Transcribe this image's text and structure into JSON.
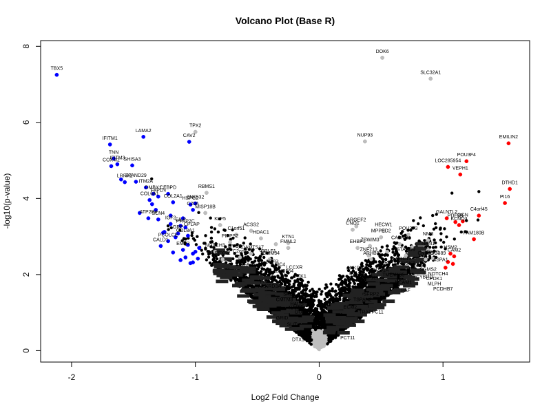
{
  "chart_data": {
    "type": "scatter",
    "title": "Volcano Plot (Base R)",
    "xlabel": "Log2 Fold Change",
    "ylabel": "-log10(p-value)",
    "xlim": [
      -2.25,
      1.7
    ],
    "ylim": [
      -0.3,
      8.15
    ],
    "xticks": [
      -2,
      -1,
      0,
      1
    ],
    "yticks": [
      0,
      2,
      4,
      6,
      8
    ],
    "grid": false,
    "legend": "none",
    "colors": {
      "ns": "#000000",
      "fc_only": "#bebebe",
      "down": "#0000ff",
      "up": "#ff0000"
    },
    "series": [
      {
        "group": "down",
        "points": [
          {
            "x": -2.12,
            "y": 7.25,
            "label": "TBX5"
          },
          {
            "x": -1.69,
            "y": 5.42,
            "label": "IFITM1"
          },
          {
            "x": -1.42,
            "y": 5.62,
            "label": "LAMA2"
          },
          {
            "x": -1.05,
            "y": 5.49,
            "label": "CAV2"
          },
          {
            "x": -1.66,
            "y": 5.05,
            "label": "TNN"
          },
          {
            "x": -1.63,
            "y": 4.9,
            "label": "IFITM3"
          },
          {
            "x": -1.68,
            "y": 4.85,
            "label": "COX4I2"
          },
          {
            "x": -1.51,
            "y": 4.87,
            "label": "SHISA3"
          },
          {
            "x": -1.57,
            "y": 4.43,
            "label": "LRRK2"
          },
          {
            "x": -1.48,
            "y": 4.44,
            "label": "ZFAND29"
          },
          {
            "x": -1.4,
            "y": 4.29,
            "label": "ITM2A"
          },
          {
            "x": -1.34,
            "y": 4.12,
            "label": "DMBX1"
          },
          {
            "x": -1.3,
            "y": 4.05,
            "label": "FAPLN"
          },
          {
            "x": -1.22,
            "y": 4.12,
            "label": "CEBPD"
          },
          {
            "x": -1.37,
            "y": 3.96,
            "label": "COL6A1"
          },
          {
            "x": -1.18,
            "y": 3.9,
            "label": "COL2A1"
          },
          {
            "x": -1.04,
            "y": 3.84,
            "label": "HSPG2"
          },
          {
            "x": -1.0,
            "y": 3.87,
            "label": "ZNF532"
          },
          {
            "x": -1.02,
            "y": 3.7,
            "label": "C20A"
          },
          {
            "x": -1.38,
            "y": 3.48,
            "label": "ATP2B4"
          },
          {
            "x": -1.3,
            "y": 3.45,
            "label": "SCN4"
          },
          {
            "x": -1.2,
            "y": 3.33,
            "label": "IGF2"
          },
          {
            "x": -1.12,
            "y": 3.28,
            "label": "CILP"
          },
          {
            "x": -1.08,
            "y": 3.24,
            "label": "PPAP2C"
          },
          {
            "x": -1.14,
            "y": 3.08,
            "label": "GRP"
          },
          {
            "x": -1.22,
            "y": 2.88,
            "label": "PCOLCE"
          },
          {
            "x": -1.28,
            "y": 2.75,
            "label": "CALD1"
          },
          {
            "x": -1.1,
            "y": 2.65,
            "label": "EMP3"
          },
          {
            "x": -1.02,
            "y": 2.55,
            "label": ""
          },
          {
            "x": -0.98,
            "y": 2.42,
            "label": ""
          },
          {
            "x": -1.25,
            "y": 3.12,
            "label": ""
          },
          {
            "x": -1.16,
            "y": 2.98,
            "label": ""
          },
          {
            "x": -1.06,
            "y": 2.78,
            "label": ""
          },
          {
            "x": -1.18,
            "y": 2.58,
            "label": ""
          },
          {
            "x": -1.08,
            "y": 2.45,
            "label": ""
          },
          {
            "x": -1.02,
            "y": 2.32,
            "label": ""
          },
          {
            "x": -1.12,
            "y": 2.38,
            "label": ""
          },
          {
            "x": -1.32,
            "y": 3.7,
            "label": ""
          },
          {
            "x": -1.45,
            "y": 3.62,
            "label": ""
          },
          {
            "x": -1.06,
            "y": 3.02,
            "label": ""
          },
          {
            "x": -0.97,
            "y": 2.7,
            "label": ""
          },
          {
            "x": -1.2,
            "y": 3.55,
            "label": ""
          },
          {
            "x": -1.1,
            "y": 3.48,
            "label": ""
          },
          {
            "x": -1.6,
            "y": 4.5,
            "label": ""
          },
          {
            "x": -1.35,
            "y": 3.85,
            "label": ""
          },
          {
            "x": -1.26,
            "y": 3.1,
            "label": ""
          },
          {
            "x": -1.0,
            "y": 2.6,
            "label": ""
          },
          {
            "x": -1.04,
            "y": 2.3,
            "label": ""
          }
        ]
      },
      {
        "group": "up",
        "points": [
          {
            "x": 1.53,
            "y": 5.45,
            "label": "EMILIN2"
          },
          {
            "x": 1.19,
            "y": 4.98,
            "label": "POU3F4"
          },
          {
            "x": 1.04,
            "y": 4.83,
            "label": "LOC285954"
          },
          {
            "x": 1.14,
            "y": 4.63,
            "label": "VEPH1"
          },
          {
            "x": 1.54,
            "y": 4.25,
            "label": "DTHD1"
          },
          {
            "x": 1.5,
            "y": 3.88,
            "label": "PI16"
          },
          {
            "x": 1.03,
            "y": 3.48,
            "label": "GALNTL2"
          },
          {
            "x": 1.1,
            "y": 3.38,
            "label": "PDE8B"
          },
          {
            "x": 1.13,
            "y": 3.3,
            "label": "KCNQ3"
          },
          {
            "x": 1.16,
            "y": 3.4,
            "label": "OGN"
          },
          {
            "x": 1.29,
            "y": 3.55,
            "label": "C4orf45"
          },
          {
            "x": 1.25,
            "y": 2.93,
            "label": "FAM180B"
          },
          {
            "x": 1.06,
            "y": 2.55,
            "label": "HSM2"
          },
          {
            "x": 1.09,
            "y": 2.48,
            "label": "CAM2"
          },
          {
            "x": 1.04,
            "y": 2.33,
            "label": ""
          },
          {
            "x": 1.02,
            "y": 2.18,
            "label": ""
          },
          {
            "x": 1.08,
            "y": 2.28,
            "label": ""
          }
        ]
      },
      {
        "group": "fc_only",
        "points": [
          {
            "x": 0.51,
            "y": 7.7,
            "label": "DOK6"
          },
          {
            "x": 0.9,
            "y": 7.15,
            "label": "SLC32A1"
          },
          {
            "x": 0.37,
            "y": 5.5,
            "label": "NUP93"
          },
          {
            "x": -0.91,
            "y": 4.15,
            "label": "RBMS1"
          },
          {
            "x": -1.0,
            "y": 5.75,
            "label": "TPX2"
          },
          {
            "x": -0.92,
            "y": 3.62,
            "label": "MISP18B"
          },
          {
            "x": -0.8,
            "y": 3.3,
            "label": "KLF5"
          },
          {
            "x": -0.55,
            "y": 3.15,
            "label": "ACSS2"
          },
          {
            "x": -0.47,
            "y": 2.95,
            "label": "HDAC1"
          },
          {
            "x": -0.25,
            "y": 2.83,
            "label": "KTN1"
          },
          {
            "x": -0.25,
            "y": 2.7,
            "label": "FMNL2"
          },
          {
            "x": 0.3,
            "y": 3.27,
            "label": "ARGEF2"
          },
          {
            "x": 0.27,
            "y": 3.18,
            "label": "CNO1"
          },
          {
            "x": 0.52,
            "y": 3.15,
            "label": "HECW1"
          },
          {
            "x": 0.72,
            "y": 3.05,
            "label": "POU3F3"
          },
          {
            "x": 0.5,
            "y": 2.98,
            "label": "MPPED2"
          },
          {
            "x": 0.88,
            "y": 2.9,
            "label": "NMB"
          },
          {
            "x": 0.65,
            "y": 2.8,
            "label": "CADM2"
          },
          {
            "x": 0.41,
            "y": 2.75,
            "label": "ZSWIM3"
          },
          {
            "x": 0.31,
            "y": 2.7,
            "label": "EHBP1"
          },
          {
            "x": 0.88,
            "y": 2.65,
            "label": "NRN1"
          },
          {
            "x": -0.67,
            "y": 3.05,
            "label": "C1orf51"
          },
          {
            "x": -0.84,
            "y": 2.6,
            "label": "NOTCH3"
          },
          {
            "x": -0.72,
            "y": 2.85,
            "label": "PIPPS2"
          },
          {
            "x": -0.4,
            "y": 2.4,
            "label": "TOMM34"
          },
          {
            "x": -0.55,
            "y": 2.55,
            "label": "ADAMTS17"
          },
          {
            "x": 0.4,
            "y": 2.5,
            "label": "ZNF213"
          },
          {
            "x": 0.42,
            "y": 2.4,
            "label": "ARHB9"
          },
          {
            "x": 0.7,
            "y": 2.5,
            "label": "STARD9"
          },
          {
            "x": 0.86,
            "y": 2.4,
            "label": "CNTN1"
          },
          {
            "x": 0.92,
            "y": 2.42,
            "label": "FAM1"
          },
          {
            "x": -0.64,
            "y": 2.45,
            "label": "C2orf7"
          },
          {
            "x": -0.78,
            "y": 2.4,
            "label": "EFXN2"
          },
          {
            "x": -0.35,
            "y": 2.8,
            "label": ""
          },
          {
            "x": -0.45,
            "y": 2.6,
            "label": ""
          },
          {
            "x": 0.55,
            "y": 2.6,
            "label": ""
          },
          {
            "x": 0.75,
            "y": 2.72,
            "label": ""
          }
        ]
      }
    ],
    "annotations": [
      {
        "x": -0.41,
        "y": 2.58,
        "label": "CRLF1"
      },
      {
        "x": -0.68,
        "y": 2.7,
        "label": "MYOD"
      },
      {
        "x": -1.03,
        "y": 3.28,
        "label": "CPLAP"
      },
      {
        "x": -1.08,
        "y": 3.12,
        "label": "COL8A1"
      },
      {
        "x": -0.6,
        "y": 2.22,
        "label": "NFA"
      },
      {
        "x": -0.49,
        "y": 2.2,
        "label": "PLIN4"
      },
      {
        "x": -0.38,
        "y": 2.3,
        "label": "SDFR"
      },
      {
        "x": -0.33,
        "y": 2.22,
        "label": "ASIC4"
      },
      {
        "x": -0.2,
        "y": 2.15,
        "label": "LCCXR"
      },
      {
        "x": -0.28,
        "y": 2.05,
        "label": "LNQ564"
      },
      {
        "x": -0.14,
        "y": 1.92,
        "label": "TK1"
      },
      {
        "x": -0.45,
        "y": 1.78,
        "label": "YY3"
      },
      {
        "x": -0.4,
        "y": 1.65,
        "label": "ANKRD3A"
      },
      {
        "x": -0.25,
        "y": 1.45,
        "label": "SRD"
      },
      {
        "x": -0.28,
        "y": 1.3,
        "label": "CMTM8"
      },
      {
        "x": -0.14,
        "y": 1.42,
        "label": "SLC41A5"
      },
      {
        "x": -0.18,
        "y": 1.18,
        "label": "HADS"
      },
      {
        "x": -0.19,
        "y": 1.08,
        "label": "NAMB"
      },
      {
        "x": -0.12,
        "y": 0.98,
        "label": "DUSP30"
      },
      {
        "x": -0.3,
        "y": 0.82,
        "label": "GRID"
      },
      {
        "x": -0.22,
        "y": 0.65,
        "label": "SLIT"
      },
      {
        "x": -0.15,
        "y": 0.45,
        "label": "AFF"
      },
      {
        "x": -0.17,
        "y": 0.25,
        "label": "DTX1"
      },
      {
        "x": 0.23,
        "y": 0.3,
        "label": "PCT11"
      },
      {
        "x": 0.03,
        "y": 1.1,
        "label": "LIN"
      },
      {
        "x": 0.28,
        "y": 2.0,
        "label": "BCL"
      },
      {
        "x": 0.4,
        "y": 1.88,
        "label": "AFAP1L1"
      },
      {
        "x": 0.6,
        "y": 1.95,
        "label": "TMEM135"
      },
      {
        "x": 0.68,
        "y": 1.75,
        "label": "NCAM1"
      },
      {
        "x": 0.7,
        "y": 1.55,
        "label": "PAF"
      },
      {
        "x": 0.42,
        "y": 1.45,
        "label": "SFRP2"
      },
      {
        "x": 0.35,
        "y": 1.3,
        "label": "TSPAN2"
      },
      {
        "x": 0.25,
        "y": 1.1,
        "label": "ECM2"
      },
      {
        "x": 0.42,
        "y": 0.98,
        "label": "TRAPPC11"
      },
      {
        "x": 0.31,
        "y": 2.13,
        "label": "ANKRD29"
      },
      {
        "x": 0.48,
        "y": 2.08,
        "label": "CORO1A"
      },
      {
        "x": 0.88,
        "y": 2.1,
        "label": "SGMS2"
      },
      {
        "x": 0.96,
        "y": 1.98,
        "label": "NOTCH4"
      },
      {
        "x": 1.0,
        "y": 1.58,
        "label": "PCDHB7"
      },
      {
        "x": 0.95,
        "y": 2.52,
        "label": "LOC389"
      },
      {
        "x": 0.98,
        "y": 2.35,
        "label": "ASPA1"
      },
      {
        "x": 0.93,
        "y": 1.72,
        "label": "MLPH"
      },
      {
        "x": 0.85,
        "y": 1.9,
        "label": "CYBRD"
      },
      {
        "x": 0.93,
        "y": 1.85,
        "label": "CPDK1"
      },
      {
        "x": 0.72,
        "y": 2.25,
        "label": "DGKZ"
      },
      {
        "x": 0.79,
        "y": 2.2,
        "label": "PAB5"
      },
      {
        "x": 0.55,
        "y": 2.28,
        "label": "GRB7"
      },
      {
        "x": 0.67,
        "y": 2.38,
        "label": "LRRC15"
      }
    ]
  }
}
